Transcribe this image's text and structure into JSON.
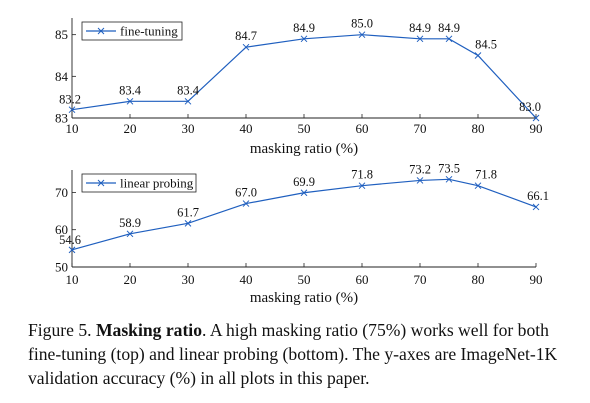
{
  "chart_data": [
    {
      "type": "line",
      "xlabel": "masking ratio (%)",
      "x": [
        10,
        20,
        30,
        40,
        50,
        60,
        70,
        75,
        80,
        90
      ],
      "xticks": [
        10,
        20,
        30,
        40,
        50,
        60,
        70,
        80,
        90
      ],
      "yticks": [
        83,
        84,
        85
      ],
      "xlim": [
        10,
        90
      ],
      "ylim": [
        83,
        85.4
      ],
      "legend_position": "top-left",
      "series": [
        {
          "name": "fine-tuning",
          "values": [
            83.2,
            83.4,
            83.4,
            84.7,
            84.9,
            85.0,
            84.9,
            84.9,
            84.5,
            83.0
          ],
          "labels": [
            "83.2",
            "83.4",
            "83.4",
            "84.7",
            "84.9",
            "85.0",
            "84.9",
            "84.9",
            "84.5",
            "83.0"
          ]
        }
      ],
      "color": "#1f5fbf"
    },
    {
      "type": "line",
      "xlabel": "masking ratio (%)",
      "x": [
        10,
        20,
        30,
        40,
        50,
        60,
        70,
        75,
        80,
        90
      ],
      "xticks": [
        10,
        20,
        30,
        40,
        50,
        60,
        70,
        80,
        90
      ],
      "yticks": [
        50,
        60,
        70
      ],
      "xlim": [
        10,
        90
      ],
      "ylim": [
        50,
        76
      ],
      "legend_position": "top-left",
      "series": [
        {
          "name": "linear probing",
          "values": [
            54.6,
            58.9,
            61.7,
            67.0,
            69.9,
            71.8,
            73.2,
            73.5,
            71.8,
            66.1
          ],
          "labels": [
            "54.6",
            "58.9",
            "61.7",
            "67.0",
            "69.9",
            "71.8",
            "73.2",
            "73.5",
            "71.8",
            "66.1"
          ]
        }
      ],
      "color": "#1f5fbf"
    }
  ],
  "caption": {
    "prefix": "Figure 5. ",
    "bold": "Masking ratio",
    "text": ". A high masking ratio (75%) works well for both fine-tuning (top) and linear probing (bottom). The y-axes are ImageNet-1K validation accuracy (%) in all plots in this paper."
  }
}
